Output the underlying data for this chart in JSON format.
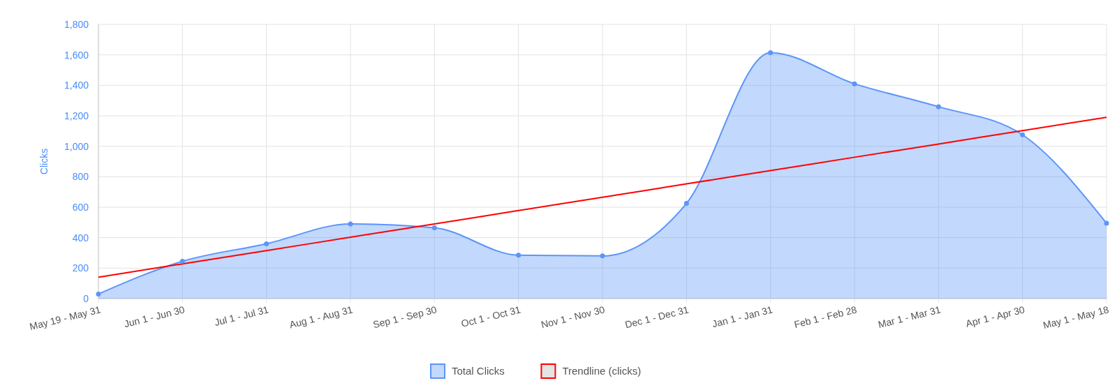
{
  "chart_data": {
    "type": "area",
    "ylabel": "Clicks",
    "categories": [
      "May 19 - May 31",
      "Jun 1 - Jun 30",
      "Jul 1 - Jul 31",
      "Aug 1 - Aug 31",
      "Sep 1 - Sep 30",
      "Oct 1 - Oct 31",
      "Nov 1 - Nov 30",
      "Dec 1 - Dec 31",
      "Jan 1 - Jan 31",
      "Feb 1 - Feb 28",
      "Mar 1 - Mar 31",
      "Apr 1 - Apr 30",
      "May 1 - May 18"
    ],
    "series": [
      {
        "name": "Total Clicks",
        "color": "#5b95f9",
        "marker": "circle",
        "values": [
          30,
          245,
          360,
          490,
          465,
          285,
          280,
          625,
          1615,
          1410,
          1260,
          1075,
          495
        ]
      },
      {
        "name": "Trendline (clicks)",
        "type": "line",
        "color": "#ff0000",
        "marker": "none",
        "values": [
          140,
          228,
          315,
          403,
          490,
          578,
          665,
          753,
          840,
          928,
          1015,
          1103,
          1190
        ]
      }
    ],
    "ylim": [
      0,
      1800
    ],
    "yticks": [
      0,
      {
        "value": 200,
        "label": "200"
      },
      {
        "value": 400,
        "label": "400"
      },
      {
        "value": 600,
        "label": "600"
      },
      {
        "value": 800,
        "label": "800"
      },
      {
        "value": 1000,
        "label": "1,000"
      },
      {
        "value": 1200,
        "label": "1,200"
      },
      {
        "value": 1400,
        "label": "1,400"
      },
      {
        "value": 1600,
        "label": "1,600"
      },
      {
        "value": 1800,
        "label": "1,800"
      }
    ],
    "grid": true,
    "legend": "bottom"
  }
}
